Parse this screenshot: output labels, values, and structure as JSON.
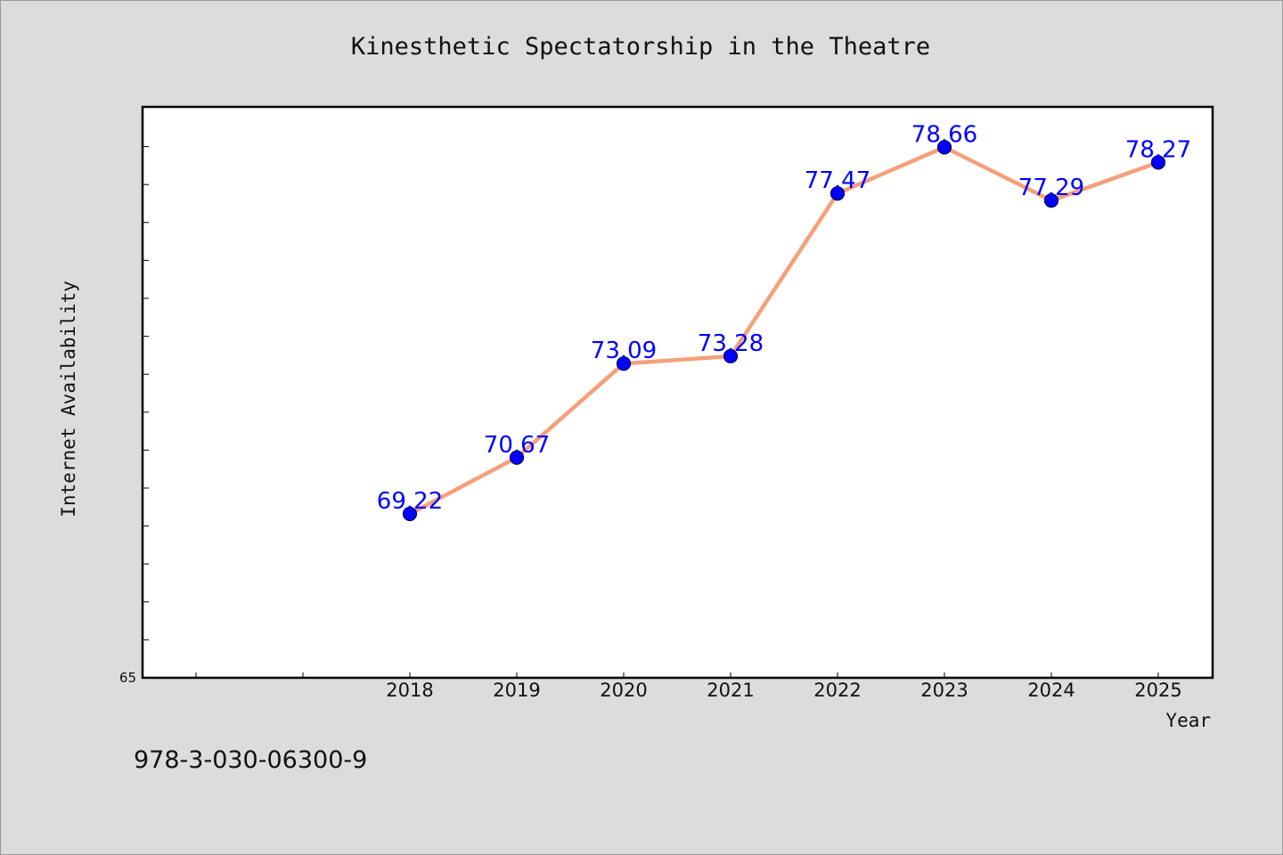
{
  "chart_data": {
    "type": "line",
    "title": "Kinesthetic Spectatorship in the Theatre",
    "xlabel": "Year",
    "ylabel": "Internet Availability",
    "categories": [
      "2018",
      "2019",
      "2020",
      "2021",
      "2022",
      "2023",
      "2024",
      "2025"
    ],
    "series": [
      {
        "values": [
          69.22,
          70.67,
          73.09,
          73.28,
          77.47,
          78.66,
          77.29,
          78.27
        ],
        "labels": [
          "69.22",
          "70.67",
          "73.09",
          "73.28",
          "77.47",
          "78.66",
          "77.29",
          "78.27"
        ],
        "line_color": "#f4a07a",
        "marker_color": "#0000ff"
      }
    ],
    "ylim": [
      65,
      79.7
    ],
    "y_tick_labels": [
      "65"
    ],
    "grid": false,
    "legend": "none"
  },
  "footer_text": "978-3-030-06300-9"
}
